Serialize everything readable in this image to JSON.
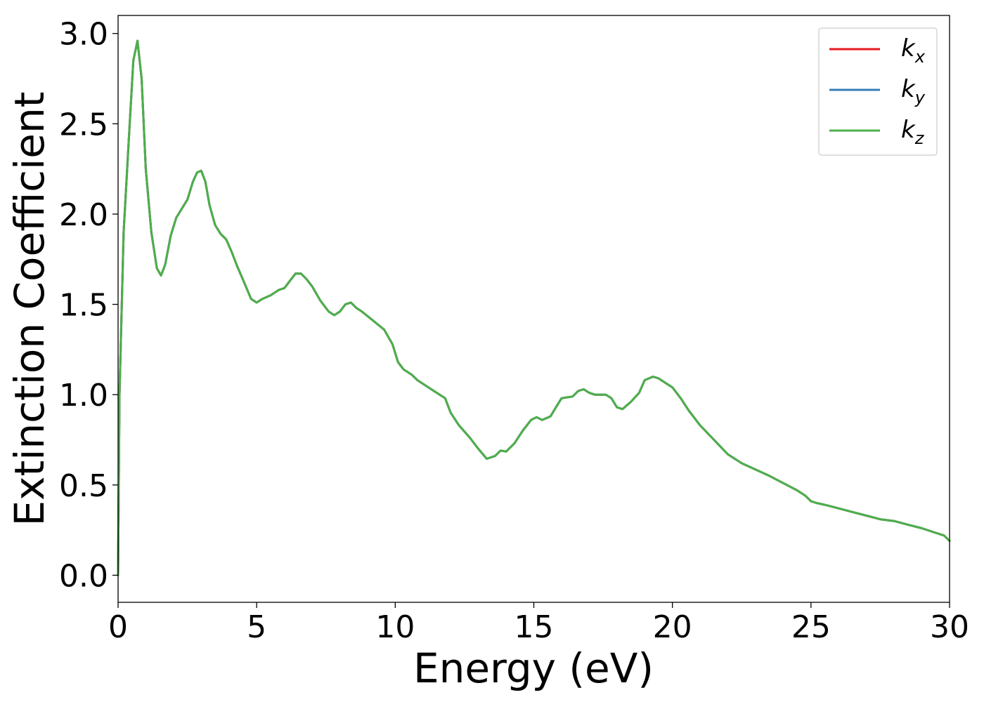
{
  "chart_data": {
    "type": "line",
    "title": "",
    "xlabel": "Energy (eV)",
    "ylabel": "Extinction Coefficient",
    "xlim": [
      0,
      30
    ],
    "ylim": [
      -0.15,
      3.1
    ],
    "xticks": [
      0,
      5,
      10,
      15,
      20,
      25,
      30
    ],
    "xtick_labels": [
      "0",
      "5",
      "10",
      "15",
      "20",
      "25",
      "30"
    ],
    "yticks": [
      0.0,
      0.5,
      1.0,
      1.5,
      2.0,
      2.5,
      3.0
    ],
    "ytick_labels": [
      "0.0",
      "0.5",
      "1.0",
      "1.5",
      "2.0",
      "2.5",
      "3.0"
    ],
    "grid": false,
    "legend_position": "top-right",
    "x": [
      0,
      0.05,
      0.2,
      0.4,
      0.55,
      0.7,
      0.85,
      1.0,
      1.2,
      1.4,
      1.55,
      1.7,
      1.9,
      2.1,
      2.3,
      2.5,
      2.7,
      2.85,
      3.0,
      3.15,
      3.3,
      3.5,
      3.7,
      3.9,
      4.1,
      4.3,
      4.5,
      4.8,
      5.0,
      5.2,
      5.5,
      5.8,
      6.0,
      6.2,
      6.4,
      6.6,
      6.8,
      7.0,
      7.3,
      7.6,
      7.8,
      8.0,
      8.2,
      8.4,
      8.6,
      8.8,
      9.2,
      9.6,
      9.9,
      10.1,
      10.3,
      10.6,
      10.8,
      11.0,
      11.3,
      11.5,
      11.8,
      12.0,
      12.3,
      12.7,
      13.0,
      13.3,
      13.6,
      13.8,
      14.0,
      14.3,
      14.6,
      14.9,
      15.1,
      15.3,
      15.6,
      15.8,
      16.0,
      16.2,
      16.4,
      16.6,
      16.8,
      17.0,
      17.2,
      17.4,
      17.6,
      17.8,
      18.0,
      18.2,
      18.5,
      18.8,
      19.0,
      19.3,
      19.5,
      19.8,
      20.0,
      20.3,
      20.6,
      21.0,
      21.5,
      22.0,
      22.5,
      23.0,
      23.5,
      24.0,
      24.5,
      24.8,
      25.0,
      25.2,
      25.5,
      26.0,
      26.5,
      27.0,
      27.5,
      28.0,
      28.5,
      29.0,
      29.5,
      29.8,
      30.0
    ],
    "series": [
      {
        "name": "k_x",
        "legend_main": "k",
        "legend_sub": "x",
        "color": "#e41a1c",
        "values": [
          0.0,
          1.0,
          1.9,
          2.45,
          2.85,
          2.96,
          2.75,
          2.25,
          1.9,
          1.7,
          1.66,
          1.72,
          1.88,
          1.98,
          2.03,
          2.08,
          2.18,
          2.23,
          2.24,
          2.18,
          2.05,
          1.94,
          1.89,
          1.86,
          1.79,
          1.71,
          1.64,
          1.53,
          1.51,
          1.53,
          1.55,
          1.58,
          1.59,
          1.63,
          1.67,
          1.67,
          1.64,
          1.6,
          1.52,
          1.46,
          1.44,
          1.46,
          1.5,
          1.51,
          1.48,
          1.46,
          1.41,
          1.36,
          1.28,
          1.18,
          1.14,
          1.11,
          1.08,
          1.06,
          1.03,
          1.01,
          0.98,
          0.9,
          0.83,
          0.76,
          0.7,
          0.645,
          0.66,
          0.69,
          0.685,
          0.73,
          0.8,
          0.86,
          0.875,
          0.86,
          0.88,
          0.93,
          0.98,
          0.985,
          0.99,
          1.02,
          1.03,
          1.01,
          1.0,
          1.0,
          1.0,
          0.98,
          0.93,
          0.92,
          0.96,
          1.01,
          1.08,
          1.1,
          1.09,
          1.06,
          1.04,
          0.98,
          0.91,
          0.83,
          0.75,
          0.67,
          0.62,
          0.585,
          0.55,
          0.51,
          0.47,
          0.44,
          0.41,
          0.4,
          0.39,
          0.37,
          0.35,
          0.33,
          0.31,
          0.3,
          0.28,
          0.26,
          0.235,
          0.22,
          0.19
        ]
      },
      {
        "name": "k_y",
        "legend_main": "k",
        "legend_sub": "y",
        "color": "#377eb8",
        "values": [
          0.0,
          1.0,
          1.9,
          2.45,
          2.85,
          2.96,
          2.75,
          2.25,
          1.9,
          1.7,
          1.66,
          1.72,
          1.88,
          1.98,
          2.03,
          2.08,
          2.18,
          2.23,
          2.24,
          2.18,
          2.05,
          1.94,
          1.89,
          1.86,
          1.79,
          1.71,
          1.64,
          1.53,
          1.51,
          1.53,
          1.55,
          1.58,
          1.59,
          1.63,
          1.67,
          1.67,
          1.64,
          1.6,
          1.52,
          1.46,
          1.44,
          1.46,
          1.5,
          1.51,
          1.48,
          1.46,
          1.41,
          1.36,
          1.28,
          1.18,
          1.14,
          1.11,
          1.08,
          1.06,
          1.03,
          1.01,
          0.98,
          0.9,
          0.83,
          0.76,
          0.7,
          0.645,
          0.66,
          0.69,
          0.685,
          0.73,
          0.8,
          0.86,
          0.875,
          0.86,
          0.88,
          0.93,
          0.98,
          0.985,
          0.99,
          1.02,
          1.03,
          1.01,
          1.0,
          1.0,
          1.0,
          0.98,
          0.93,
          0.92,
          0.96,
          1.01,
          1.08,
          1.1,
          1.09,
          1.06,
          1.04,
          0.98,
          0.91,
          0.83,
          0.75,
          0.67,
          0.62,
          0.585,
          0.55,
          0.51,
          0.47,
          0.44,
          0.41,
          0.4,
          0.39,
          0.37,
          0.35,
          0.33,
          0.31,
          0.3,
          0.28,
          0.26,
          0.235,
          0.22,
          0.19
        ]
      },
      {
        "name": "k_z",
        "legend_main": "k",
        "legend_sub": "z",
        "color": "#4daf4a",
        "values": [
          0.0,
          1.0,
          1.9,
          2.45,
          2.85,
          2.96,
          2.75,
          2.25,
          1.9,
          1.7,
          1.66,
          1.72,
          1.88,
          1.98,
          2.03,
          2.08,
          2.18,
          2.23,
          2.24,
          2.18,
          2.05,
          1.94,
          1.89,
          1.86,
          1.79,
          1.71,
          1.64,
          1.53,
          1.51,
          1.53,
          1.55,
          1.58,
          1.59,
          1.63,
          1.67,
          1.67,
          1.64,
          1.6,
          1.52,
          1.46,
          1.44,
          1.46,
          1.5,
          1.51,
          1.48,
          1.46,
          1.41,
          1.36,
          1.28,
          1.18,
          1.14,
          1.11,
          1.08,
          1.06,
          1.03,
          1.01,
          0.98,
          0.9,
          0.83,
          0.76,
          0.7,
          0.645,
          0.66,
          0.69,
          0.685,
          0.73,
          0.8,
          0.86,
          0.875,
          0.86,
          0.88,
          0.93,
          0.98,
          0.985,
          0.99,
          1.02,
          1.03,
          1.01,
          1.0,
          1.0,
          1.0,
          0.98,
          0.93,
          0.92,
          0.96,
          1.01,
          1.08,
          1.1,
          1.09,
          1.06,
          1.04,
          0.98,
          0.91,
          0.83,
          0.75,
          0.67,
          0.62,
          0.585,
          0.55,
          0.51,
          0.47,
          0.44,
          0.41,
          0.4,
          0.39,
          0.37,
          0.35,
          0.33,
          0.31,
          0.3,
          0.28,
          0.26,
          0.235,
          0.22,
          0.19
        ]
      }
    ]
  }
}
